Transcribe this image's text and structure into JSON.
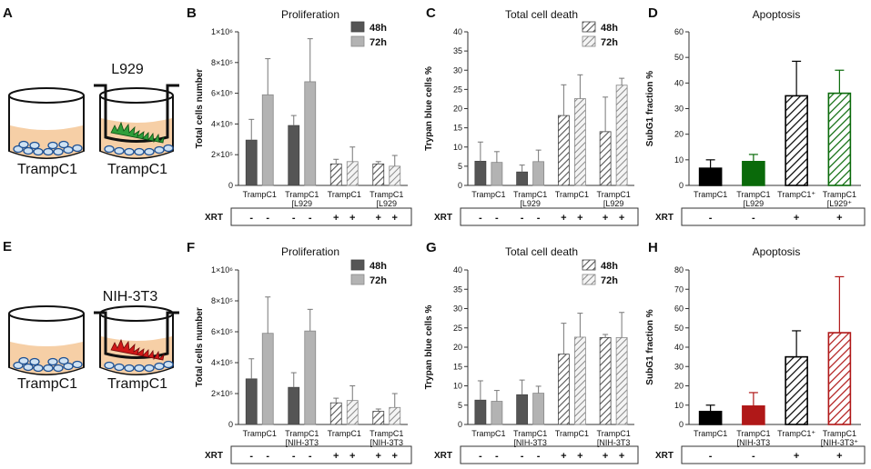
{
  "panels": {
    "A": {
      "letter": "A",
      "insert_label": "L929",
      "left_label": "TrampC1",
      "right_label": "TrampC1",
      "cell_color": "#2f9e3a"
    },
    "E": {
      "letter": "E",
      "insert_label": "NIH-3T3",
      "left_label": "TrampC1",
      "right_label": "TrampC1",
      "cell_color": "#d01818"
    }
  },
  "legend": {
    "h48": "48h",
    "h72": "72h"
  },
  "xrt_label": "XRT",
  "chart_data": [
    {
      "id": "B",
      "letter": "B",
      "type": "bar",
      "title": "Proliferation",
      "ylabel": "Total cells number",
      "ylim": [
        0,
        1000000
      ],
      "yticks": [
        "0",
        "2×10⁵",
        "4×10⁵",
        "6×10⁵",
        "8×10⁵",
        "1×10⁶"
      ],
      "groups": [
        {
          "line1": "TrampC1",
          "line2": ""
        },
        {
          "line1": "TrampC1",
          "line2": "[L929"
        },
        {
          "line1": "TrampC1",
          "line2": ""
        },
        {
          "line1": "TrampC1",
          "line2": "[L929"
        }
      ],
      "xrt": [
        "-",
        "-",
        "-",
        "-",
        "+",
        "+",
        "+",
        "+"
      ],
      "series": [
        {
          "name": "48h",
          "values": [
            295000,
            390000,
            140000,
            140000
          ],
          "err": [
            135000,
            65000,
            30000,
            15000
          ]
        },
        {
          "name": "72h",
          "values": [
            590000,
            675000,
            155000,
            125000
          ],
          "err": [
            235000,
            280000,
            95000,
            70000
          ]
        }
      ]
    },
    {
      "id": "C",
      "letter": "C",
      "type": "bar",
      "title": "Total cell death",
      "ylabel": "Trypan blue cells  %",
      "ylim": [
        0,
        40
      ],
      "yticks": [
        "0",
        "5",
        "10",
        "15",
        "20",
        "25",
        "30",
        "35",
        "40"
      ],
      "groups": [
        {
          "line1": "TrampC1",
          "line2": ""
        },
        {
          "line1": "TrampC1",
          "line2": "[L929"
        },
        {
          "line1": "TrampC1",
          "line2": ""
        },
        {
          "line1": "TrampC1",
          "line2": "[L929"
        }
      ],
      "xrt": [
        "-",
        "-",
        "-",
        "-",
        "+",
        "+",
        "+",
        "+"
      ],
      "series": [
        {
          "name": "48h",
          "values": [
            6.3,
            3.5,
            18.2,
            14.0
          ],
          "err": [
            5.0,
            1.8,
            8.0,
            9.0
          ]
        },
        {
          "name": "72h",
          "values": [
            6.0,
            6.2,
            22.6,
            26.1
          ],
          "err": [
            2.8,
            3.0,
            6.2,
            1.8
          ]
        }
      ]
    },
    {
      "id": "D",
      "letter": "D",
      "type": "bar",
      "title": "Apoptosis",
      "ylabel": "SubG1 fraction %",
      "ylim": [
        0,
        60
      ],
      "yticks": [
        "0",
        "10",
        "20",
        "30",
        "40",
        "50",
        "60"
      ],
      "groups": [
        {
          "line1": "TrampC1",
          "line2": ""
        },
        {
          "line1": "TrampC1",
          "line2": "[L929"
        },
        {
          "line1": "TrampC1⁺",
          "line2": ""
        },
        {
          "line1": "TrampC1",
          "line2": "[L929⁺"
        }
      ],
      "xrt": [
        "-",
        "-",
        "+",
        "+"
      ],
      "values": [
        6.7,
        9.3,
        35.0,
        36.0
      ],
      "err": [
        3.3,
        2.8,
        13.5,
        9.0
      ],
      "colors": [
        "#000000",
        "#0a6a0a",
        "#000000",
        "#0a6a0a"
      ],
      "hatched": [
        false,
        false,
        true,
        true
      ]
    },
    {
      "id": "F",
      "letter": "F",
      "type": "bar",
      "title": "Proliferation",
      "ylabel": "Total cells number",
      "ylim": [
        0,
        1000000
      ],
      "yticks": [
        "0",
        "2×10⁵",
        "4×10⁵",
        "6×10⁵",
        "8×10⁵",
        "1×10⁶"
      ],
      "groups": [
        {
          "line1": "TrampC1",
          "line2": ""
        },
        {
          "line1": "TrampC1",
          "line2": "[NIH-3T3"
        },
        {
          "line1": "TrampC1",
          "line2": ""
        },
        {
          "line1": "TrampC1",
          "line2": "[NIH-3T3"
        }
      ],
      "xrt": [
        "-",
        "-",
        "-",
        "-",
        "+",
        "+",
        "+",
        "+"
      ],
      "series": [
        {
          "name": "48h",
          "values": [
            295000,
            240000,
            140000,
            85000
          ],
          "err": [
            130000,
            95000,
            30000,
            15000
          ]
        },
        {
          "name": "72h",
          "values": [
            590000,
            605000,
            155000,
            110000
          ],
          "err": [
            235000,
            140000,
            95000,
            90000
          ]
        }
      ]
    },
    {
      "id": "G",
      "letter": "G",
      "type": "bar",
      "title": "Total cell death",
      "ylabel": "Trypan blue cells  %",
      "ylim": [
        0,
        40
      ],
      "yticks": [
        "0",
        "5",
        "10",
        "15",
        "20",
        "25",
        "30",
        "35",
        "40"
      ],
      "groups": [
        {
          "line1": "TrampC1",
          "line2": ""
        },
        {
          "line1": "TrampC1",
          "line2": "[NIH-3T3"
        },
        {
          "line1": "TrampC1",
          "line2": ""
        },
        {
          "line1": "TrampC1",
          "line2": "[NIH-3T3"
        }
      ],
      "xrt": [
        "-",
        "-",
        "-",
        "-",
        "+",
        "+",
        "+",
        "+"
      ],
      "series": [
        {
          "name": "48h",
          "values": [
            6.3,
            7.7,
            18.2,
            22.5
          ],
          "err": [
            5.0,
            3.8,
            8.0,
            0.8
          ]
        },
        {
          "name": "72h",
          "values": [
            6.0,
            8.1,
            22.6,
            22.5
          ],
          "err": [
            2.8,
            1.8,
            6.2,
            6.5
          ]
        }
      ]
    },
    {
      "id": "H",
      "letter": "H",
      "type": "bar",
      "title": "Apoptosis",
      "ylabel": "SubG1 fraction %",
      "ylim": [
        0,
        80
      ],
      "yticks": [
        "0",
        "10",
        "20",
        "30",
        "40",
        "50",
        "60",
        "70",
        "80"
      ],
      "groups": [
        {
          "line1": "TrampC1",
          "line2": ""
        },
        {
          "line1": "TrampC1",
          "line2": "[NIH-3T3"
        },
        {
          "line1": "TrampC1⁺",
          "line2": ""
        },
        {
          "line1": "TrampC1",
          "line2": "[NIH-3T3⁺"
        }
      ],
      "xrt": [
        "-",
        "-",
        "+",
        "+"
      ],
      "values": [
        6.7,
        9.5,
        35.0,
        47.5
      ],
      "err": [
        3.3,
        7.0,
        13.5,
        29.0
      ],
      "colors": [
        "#000000",
        "#b01818",
        "#000000",
        "#b01818"
      ],
      "hatched": [
        false,
        false,
        true,
        true
      ]
    }
  ]
}
